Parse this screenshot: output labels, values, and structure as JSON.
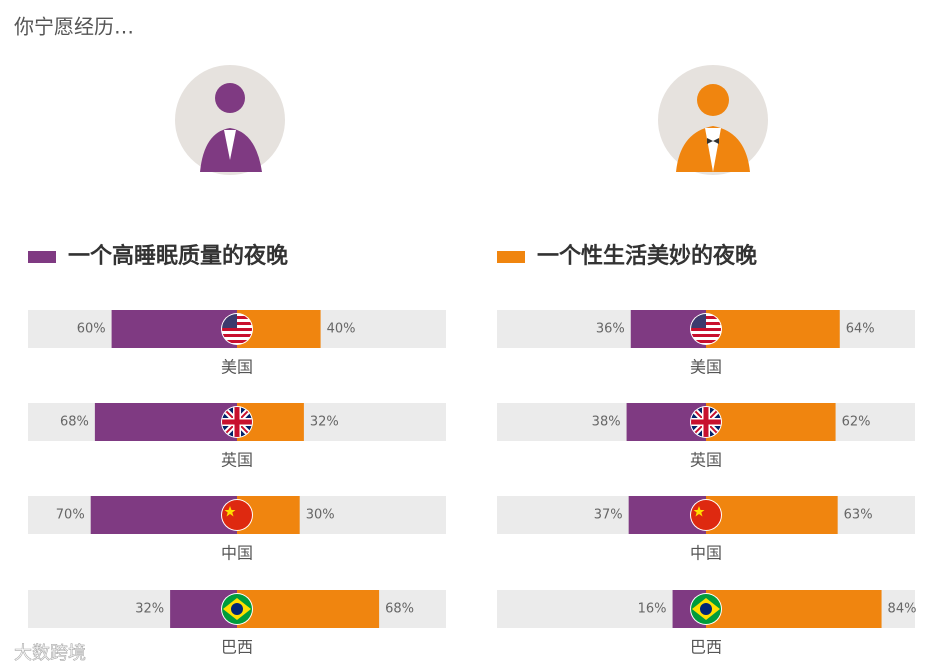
{
  "title": "你宁愿经历…",
  "watermark": "大数跨境",
  "chart_data": {
    "type": "diverging_bar",
    "categories": [
      "美国",
      "英国",
      "中国",
      "巴西"
    ],
    "xlim": [
      0,
      100
    ],
    "legend": [
      {
        "name": "一个高睡眠质量的夜晚",
        "color": "#7f3a82"
      },
      {
        "name": "一个性生活美妙的夜晚",
        "color": "#f0850f"
      }
    ],
    "panels": [
      {
        "series": [
          {
            "values": [
              60,
              68,
              70,
              32
            ],
            "value_labels": [
              "60%",
              "68%",
              "70%",
              "32%"
            ]
          },
          {
            "values": [
              40,
              32,
              30,
              68
            ],
            "value_labels": [
              "40%",
              "32%",
              "30%",
              "68%"
            ]
          }
        ]
      },
      {
        "series": [
          {
            "values": [
              36,
              38,
              37,
              16
            ],
            "value_labels": [
              "36%",
              "38%",
              "37%",
              "16%"
            ]
          },
          {
            "values": [
              64,
              62,
              63,
              84
            ],
            "value_labels": [
              "64%",
              "62%",
              "63%",
              "84%"
            ]
          }
        ]
      }
    ]
  }
}
